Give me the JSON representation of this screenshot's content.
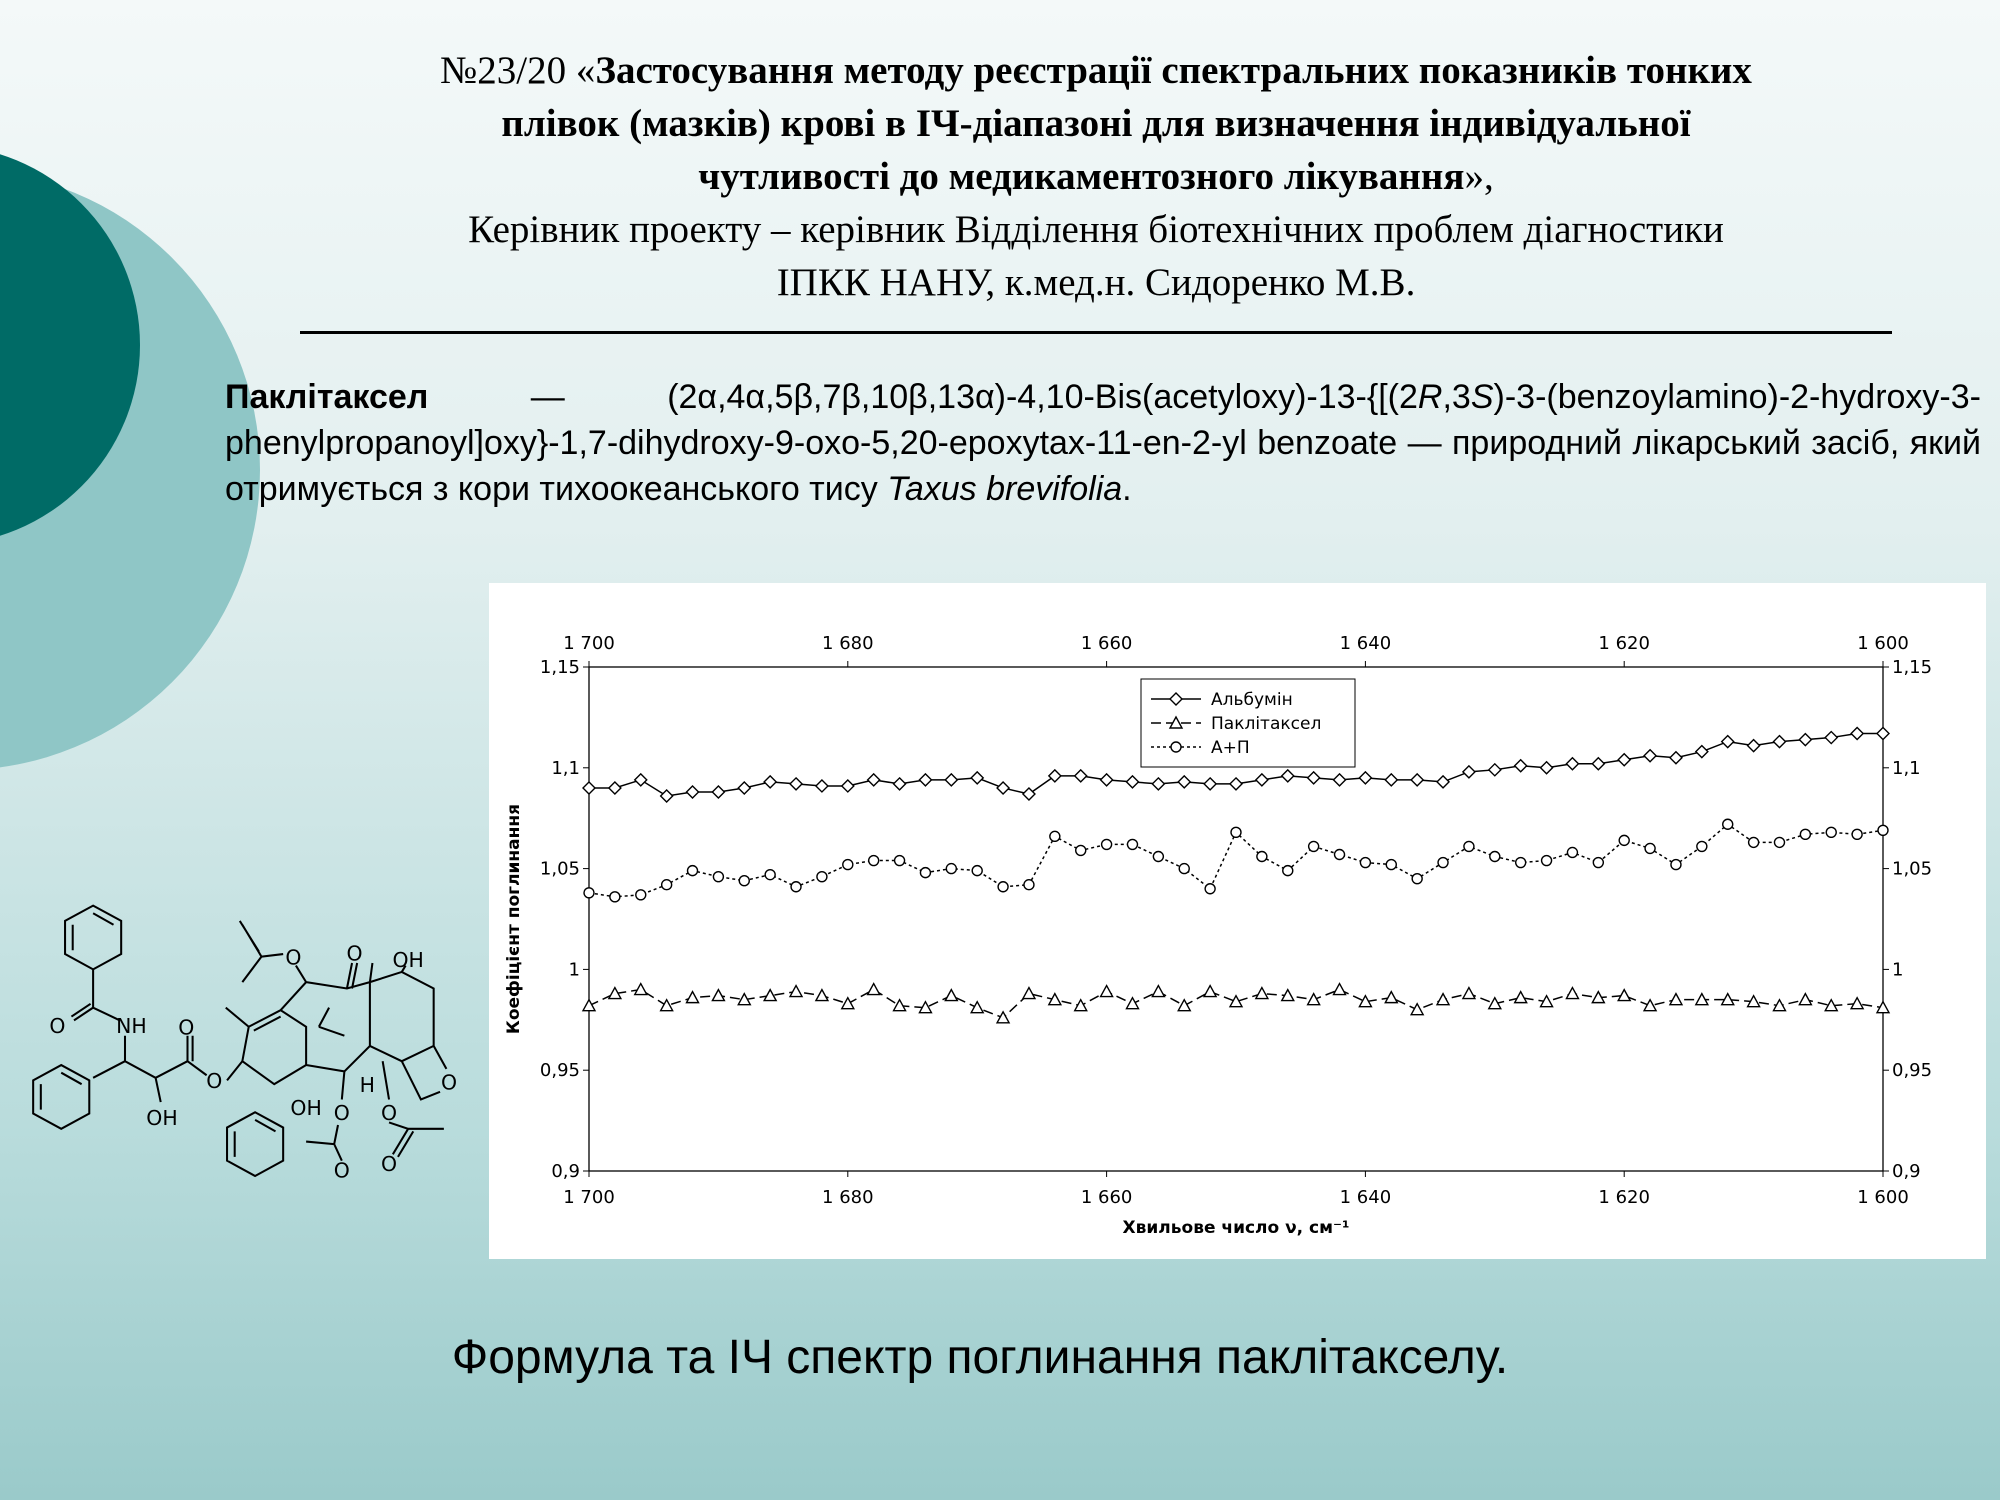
{
  "header": {
    "number": "№23/20 «",
    "title_lines": [
      "Застосування методу реєстрації спектральних показників тонких",
      "плівок (мазків) крові в ІЧ-діапазоні для визначення індивідуальної",
      "чутливості до медикаментозного лікування"
    ],
    "closing": "»,",
    "supervisor_lines": [
      "Керівник проекту – керівник Відділення біотехнічних проблем діагностики",
      "ІПКК НАНУ, к.мед.н. Сидоренко М.В."
    ]
  },
  "paragraph": {
    "term": "Паклітаксел",
    "dash": " — ",
    "name_part1": "(2α,4α,5β,7β,10β,13α)-4,10-Bis(acetyloxy)-13-{[(2",
    "r": "R",
    "comma": ",3",
    "s": "S",
    "name_part2": ")-3-(benzoylamino)-2-hydroxy-3-phenylpropanoyl]oxy}-1,7-dihydroxy-9-oxo-5,20-epoxytax-11-en-2-yl benzoate — природний лікарський засіб, який отримується з кори тихоокеанського тису ",
    "species": "Taxus brevifolia",
    "end": "."
  },
  "structure": {
    "labels": [
      "O",
      "NH",
      "OH",
      "O",
      "O",
      "O",
      "O",
      "OH",
      "OH",
      "H",
      "O",
      "O",
      "O",
      "O",
      "O"
    ]
  },
  "chart_data": {
    "type": "line",
    "y_label": "Коефіцієнт поглинання",
    "x_label": "Хвильове число ν, см⁻¹",
    "legend": "upper center",
    "grid": false,
    "x": [
      1700,
      1698,
      1696,
      1694,
      1692,
      1690,
      1688,
      1686,
      1684,
      1682,
      1680,
      1678,
      1676,
      1674,
      1672,
      1670,
      1668,
      1666,
      1664,
      1662,
      1660,
      1658,
      1656,
      1654,
      1652,
      1650,
      1648,
      1646,
      1644,
      1642,
      1640,
      1638,
      1636,
      1634,
      1632,
      1630,
      1628,
      1626,
      1624,
      1622,
      1620,
      1618,
      1616,
      1614,
      1612,
      1610,
      1608,
      1606,
      1604,
      1602,
      1600
    ],
    "xlim": [
      1700,
      1600
    ],
    "xticks": [
      {
        "value": 1700,
        "label": "1 700"
      },
      {
        "value": 1680,
        "label": "1 680"
      },
      {
        "value": 1660,
        "label": "1 660"
      },
      {
        "value": 1640,
        "label": "1 640"
      },
      {
        "value": 1620,
        "label": "1 620"
      },
      {
        "value": 1600,
        "label": "1 600"
      }
    ],
    "ylim": [
      0.9,
      1.15
    ],
    "yticks": [
      {
        "value": 0.9,
        "label": "0,9"
      },
      {
        "value": 0.95,
        "label": "0,95"
      },
      1,
      {
        "value": 1.05,
        "label": "1,05"
      },
      {
        "value": 1.1,
        "label": "1,1"
      },
      {
        "value": 1.15,
        "label": "1,15"
      }
    ],
    "series": [
      {
        "name": "Альбумін",
        "color": "#000000",
        "dash": "solid",
        "marker": "diamond",
        "values": [
          1.09,
          1.09,
          1.094,
          1.086,
          1.088,
          1.088,
          1.09,
          1.093,
          1.092,
          1.091,
          1.091,
          1.094,
          1.092,
          1.094,
          1.094,
          1.095,
          1.09,
          1.087,
          1.096,
          1.096,
          1.094,
          1.093,
          1.092,
          1.093,
          1.092,
          1.092,
          1.094,
          1.096,
          1.095,
          1.094,
          1.095,
          1.094,
          1.094,
          1.093,
          1.098,
          1.099,
          1.101,
          1.1,
          1.102,
          1.102,
          1.104,
          1.106,
          1.105,
          1.108,
          1.113,
          1.111,
          1.113,
          1.114,
          1.115,
          1.117,
          1.117
        ]
      },
      {
        "name": "Паклітаксел",
        "color": "#000000",
        "dash": "dashed",
        "marker": "triangle",
        "values": [
          0.982,
          0.988,
          0.99,
          0.982,
          0.986,
          0.987,
          0.985,
          0.987,
          0.989,
          0.987,
          0.983,
          0.99,
          0.982,
          0.981,
          0.987,
          0.981,
          0.976,
          0.988,
          0.985,
          0.982,
          0.989,
          0.983,
          0.989,
          0.982,
          0.989,
          0.984,
          0.988,
          0.987,
          0.985,
          0.99,
          0.984,
          0.986,
          0.98,
          0.985,
          0.988,
          0.983,
          0.986,
          0.984,
          0.988,
          0.986,
          0.987,
          0.982,
          0.985,
          0.985,
          0.985,
          0.984,
          0.982,
          0.985,
          0.982,
          0.983,
          0.981
        ]
      },
      {
        "name": "А+П",
        "color": "#000000",
        "dash": "dotted",
        "marker": "circle",
        "values": [
          1.038,
          1.036,
          1.037,
          1.042,
          1.049,
          1.046,
          1.044,
          1.047,
          1.041,
          1.046,
          1.052,
          1.054,
          1.054,
          1.048,
          1.05,
          1.049,
          1.041,
          1.042,
          1.066,
          1.059,
          1.062,
          1.062,
          1.056,
          1.05,
          1.04,
          1.068,
          1.056,
          1.049,
          1.061,
          1.057,
          1.053,
          1.052,
          1.045,
          1.053,
          1.061,
          1.056,
          1.053,
          1.054,
          1.058,
          1.053,
          1.064,
          1.06,
          1.052,
          1.061,
          1.072,
          1.063,
          1.063,
          1.067,
          1.068,
          1.067,
          1.069
        ]
      }
    ]
  },
  "caption": "Формула та ІЧ спектр поглинання паклітакселу."
}
